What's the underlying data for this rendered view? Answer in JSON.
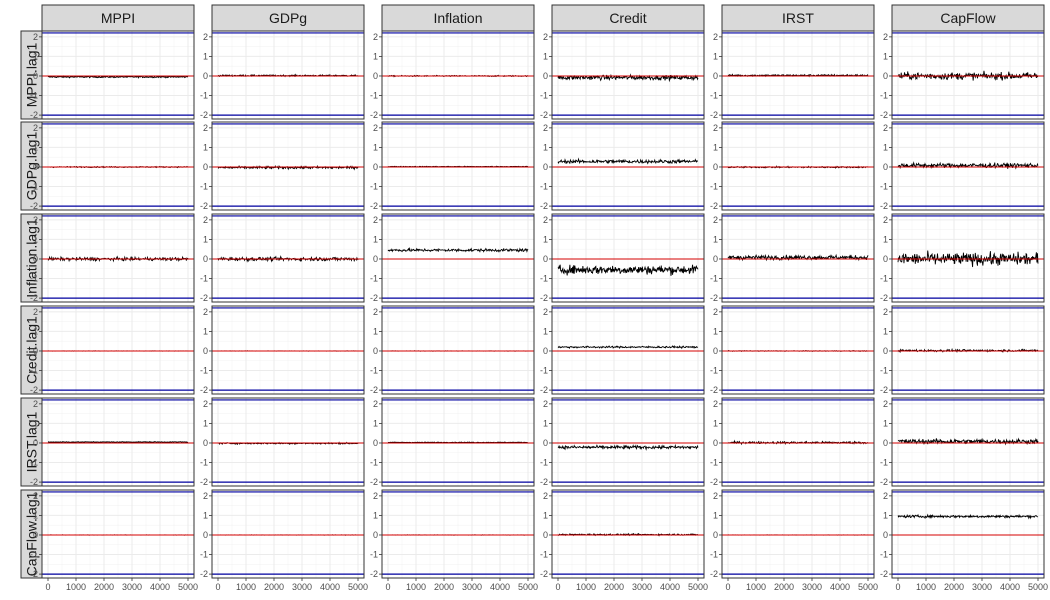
{
  "chart_data": {
    "type": "line",
    "layout": "facet-grid",
    "column_facets": [
      "MPPI",
      "GDPg",
      "Inflation",
      "Credit",
      "IRST",
      "CapFlow"
    ],
    "row_facets": [
      "MPPI.lag1",
      "GDPg.lag1",
      "Inflation.lag1",
      "Credit.lag1",
      "IRST.lag1",
      "CapFlow.lag1"
    ],
    "x_ticks": [
      0,
      1000,
      2000,
      3000,
      4000,
      5000
    ],
    "y_ticks": [
      -2,
      -1,
      0,
      1,
      2
    ],
    "xlim": [
      0,
      5000
    ],
    "ylim": [
      -2.2,
      2.3
    ],
    "reference_lines": {
      "zero": 0,
      "upper_bound": 2.2,
      "lower_bound": -2.0
    },
    "colors": {
      "series": "#000000",
      "zero_line": "#d40000",
      "bound_line": "#0000a0",
      "strip_fill": "#d9d9d9",
      "grid": "#ebebeb",
      "panel_border": "#333333"
    },
    "grid": true,
    "legend": "none",
    "series_summary": [
      {
        "row": "MPPI.lag1",
        "values_by_column": [
          {
            "mean": -0.05,
            "spread": 0.04
          },
          {
            "mean": 0.02,
            "spread": 0.04
          },
          {
            "mean": 0.0,
            "spread": 0.03
          },
          {
            "mean": -0.08,
            "spread": 0.13
          },
          {
            "mean": 0.03,
            "spread": 0.05
          },
          {
            "mean": 0.0,
            "spread": 0.2
          }
        ]
      },
      {
        "row": "GDPg.lag1",
        "values_by_column": [
          {
            "mean": 0.0,
            "spread": 0.03
          },
          {
            "mean": -0.03,
            "spread": 0.07
          },
          {
            "mean": 0.02,
            "spread": 0.02
          },
          {
            "mean": 0.28,
            "spread": 0.1
          },
          {
            "mean": -0.01,
            "spread": 0.04
          },
          {
            "mean": 0.08,
            "spread": 0.13
          }
        ]
      },
      {
        "row": "Inflation.lag1",
        "values_by_column": [
          {
            "mean": 0.0,
            "spread": 0.09
          },
          {
            "mean": 0.0,
            "spread": 0.1
          },
          {
            "mean": 0.45,
            "spread": 0.08
          },
          {
            "mean": -0.55,
            "spread": 0.25
          },
          {
            "mean": 0.08,
            "spread": 0.12
          },
          {
            "mean": 0.0,
            "spread": 0.35
          }
        ]
      },
      {
        "row": "Credit.lag1",
        "values_by_column": [
          {
            "mean": 0.0,
            "spread": 0.01
          },
          {
            "mean": 0.0,
            "spread": 0.01
          },
          {
            "mean": 0.0,
            "spread": 0.01
          },
          {
            "mean": 0.2,
            "spread": 0.05
          },
          {
            "mean": 0.0,
            "spread": 0.02
          },
          {
            "mean": 0.02,
            "spread": 0.06
          }
        ]
      },
      {
        "row": "IRST.lag1",
        "values_by_column": [
          {
            "mean": 0.05,
            "spread": 0.02
          },
          {
            "mean": -0.02,
            "spread": 0.04
          },
          {
            "mean": 0.03,
            "spread": 0.02
          },
          {
            "mean": -0.22,
            "spread": 0.09
          },
          {
            "mean": 0.02,
            "spread": 0.06
          },
          {
            "mean": 0.08,
            "spread": 0.13
          }
        ]
      },
      {
        "row": "CapFlow.lag1",
        "values_by_column": [
          {
            "mean": 0.0,
            "spread": 0.01
          },
          {
            "mean": 0.0,
            "spread": 0.01
          },
          {
            "mean": 0.0,
            "spread": 0.01
          },
          {
            "mean": 0.02,
            "spread": 0.04
          },
          {
            "mean": 0.0,
            "spread": 0.01
          },
          {
            "mean": 0.95,
            "spread": 0.07
          }
        ]
      }
    ]
  }
}
